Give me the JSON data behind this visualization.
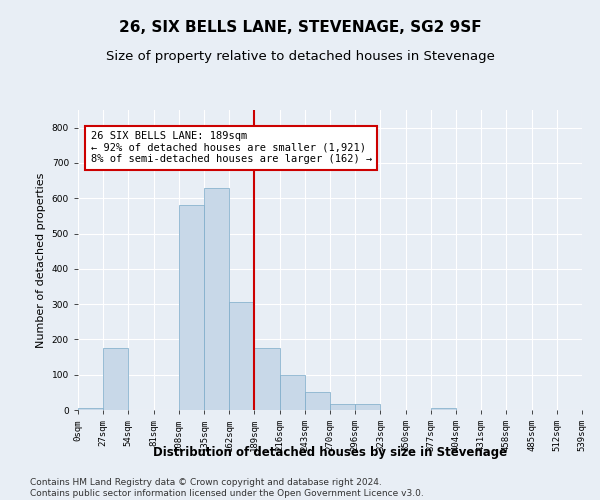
{
  "title": "26, SIX BELLS LANE, STEVENAGE, SG2 9SF",
  "subtitle": "Size of property relative to detached houses in Stevenage",
  "xlabel": "Distribution of detached houses by size in Stevenage",
  "ylabel": "Number of detached properties",
  "bin_labels": [
    "0sqm",
    "27sqm",
    "54sqm",
    "81sqm",
    "108sqm",
    "135sqm",
    "162sqm",
    "189sqm",
    "216sqm",
    "243sqm",
    "270sqm",
    "296sqm",
    "323sqm",
    "350sqm",
    "377sqm",
    "404sqm",
    "431sqm",
    "458sqm",
    "485sqm",
    "512sqm",
    "539sqm"
  ],
  "bar_values": [
    5,
    175,
    0,
    0,
    580,
    630,
    305,
    175,
    100,
    50,
    18,
    18,
    0,
    0,
    5,
    0,
    0,
    0,
    0,
    0
  ],
  "bar_color": "#c8d8e8",
  "bar_edge_color": "#7aaac8",
  "vline_index": 8,
  "annotation_line1": "26 SIX BELLS LANE: 189sqm",
  "annotation_line2": "← 92% of detached houses are smaller (1,921)",
  "annotation_line3": "8% of semi-detached houses are larger (162) →",
  "vline_color": "#cc0000",
  "annotation_edge_color": "#cc0000",
  "ylim": [
    0,
    850
  ],
  "yticks": [
    0,
    100,
    200,
    300,
    400,
    500,
    600,
    700,
    800
  ],
  "bg_color": "#e8eef5",
  "grid_color": "#ffffff",
  "title_fontsize": 11,
  "subtitle_fontsize": 9.5,
  "xlabel_fontsize": 8.5,
  "ylabel_fontsize": 8,
  "tick_fontsize": 6.5,
  "annot_fontsize": 7.5,
  "footer_fontsize": 6.5,
  "footer_text": "Contains HM Land Registry data © Crown copyright and database right 2024.\nContains public sector information licensed under the Open Government Licence v3.0."
}
